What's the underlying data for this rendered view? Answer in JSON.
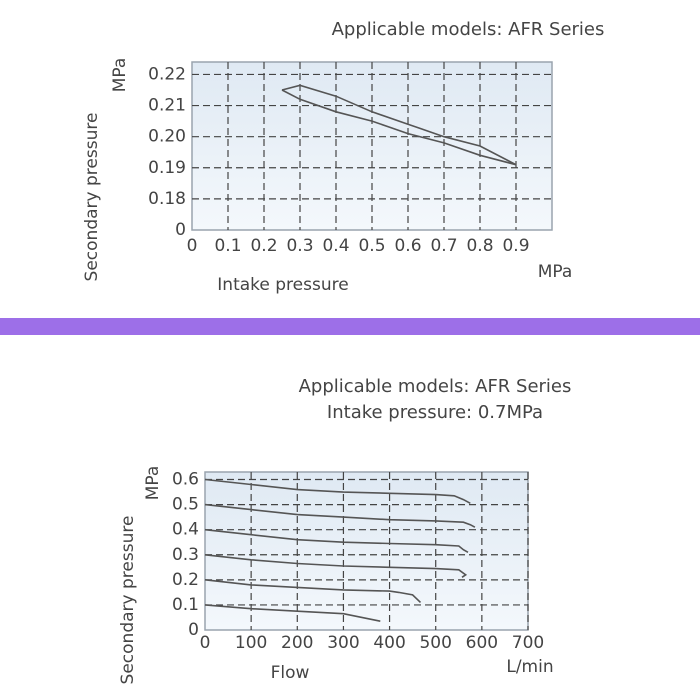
{
  "chart_data": [
    {
      "type": "line",
      "title": "Applicable models: AFR Series",
      "y_label": "Secondary pressure",
      "y_unit": "MPa",
      "x_label": "Intake pressure",
      "x_unit": "MPa",
      "xlim": [
        0,
        1.0
      ],
      "xticks": [
        0,
        0.1,
        0.2,
        0.3,
        0.4,
        0.5,
        0.6,
        0.7,
        0.8,
        0.9
      ],
      "ylim": [
        0,
        0.224
      ],
      "yticks": [
        0,
        0.18,
        0.19,
        {
          "value": 0.2,
          "label": "0.20"
        },
        0.21,
        0.22
      ],
      "grid": true,
      "series": [
        {
          "color": "#555555",
          "x": [
            0.25,
            0.3,
            0.4,
            0.5,
            0.6,
            0.7,
            0.8,
            0.9
          ],
          "values": [
            0.215,
            0.2165,
            0.213,
            0.208,
            0.204,
            0.2,
            0.197,
            0.191
          ]
        },
        {
          "color": "#555555",
          "x": [
            0.25,
            0.3,
            0.4,
            0.5,
            0.6,
            0.7,
            0.8,
            0.9
          ],
          "values": [
            0.215,
            0.212,
            0.208,
            0.205,
            0.201,
            0.198,
            0.194,
            0.191
          ]
        }
      ]
    },
    {
      "type": "line",
      "title": "Applicable models: AFR Series",
      "subtitle": "Intake pressure: 0.7MPa",
      "y_label": "Secondary pressure",
      "y_unit": "MPa",
      "x_label": "Flow",
      "x_unit": "L/min",
      "xlim": [
        0,
        700
      ],
      "xticks": [
        0,
        100,
        200,
        300,
        400,
        500,
        600,
        700
      ],
      "ylim": [
        0,
        0.63
      ],
      "yticks": [
        0,
        0.1,
        0.2,
        0.3,
        0.4,
        0.5,
        0.6
      ],
      "grid": true,
      "series": [
        {
          "color": "#555555",
          "x": [
            0,
            100,
            200,
            300,
            400,
            500,
            540,
            560,
            575
          ],
          "values": [
            0.6,
            0.58,
            0.56,
            0.55,
            0.545,
            0.54,
            0.535,
            0.52,
            0.505
          ]
        },
        {
          "color": "#555555",
          "x": [
            0,
            100,
            200,
            300,
            400,
            500,
            560,
            575,
            585
          ],
          "values": [
            0.5,
            0.48,
            0.46,
            0.45,
            0.44,
            0.435,
            0.43,
            0.42,
            0.41
          ]
        },
        {
          "color": "#555555",
          "x": [
            0,
            100,
            200,
            300,
            400,
            500,
            550,
            560,
            570
          ],
          "values": [
            0.4,
            0.38,
            0.36,
            0.35,
            0.345,
            0.34,
            0.335,
            0.32,
            0.31
          ]
        },
        {
          "color": "#555555",
          "x": [
            0,
            100,
            200,
            300,
            400,
            500,
            550,
            565,
            557
          ],
          "values": [
            0.3,
            0.28,
            0.265,
            0.255,
            0.25,
            0.245,
            0.24,
            0.22,
            0.21
          ]
        },
        {
          "color": "#555555",
          "x": [
            0,
            100,
            200,
            300,
            400,
            420,
            450,
            467
          ],
          "values": [
            0.2,
            0.18,
            0.17,
            0.16,
            0.155,
            0.15,
            0.14,
            0.11
          ]
        },
        {
          "color": "#555555",
          "x": [
            0,
            100,
            200,
            300,
            380
          ],
          "values": [
            0.1,
            0.085,
            0.075,
            0.065,
            0.035
          ]
        }
      ]
    }
  ]
}
